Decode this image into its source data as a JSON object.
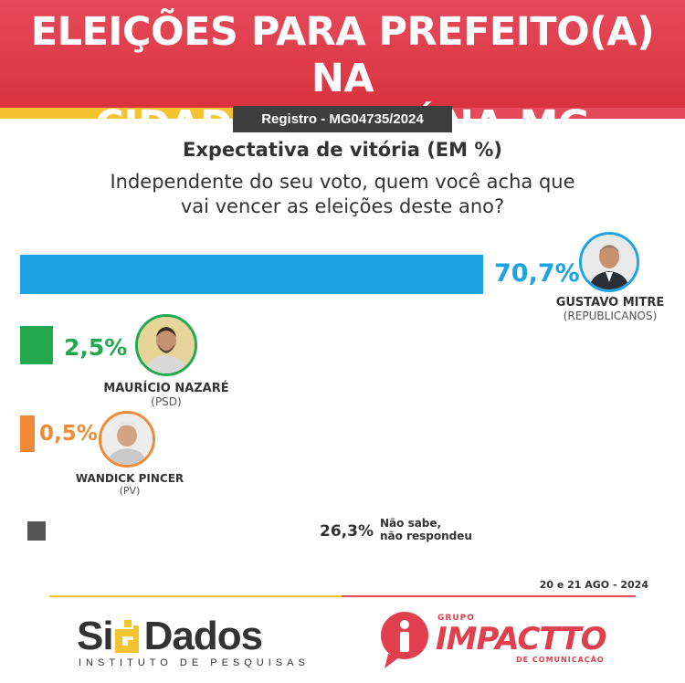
{
  "header": {
    "title_line1": "ELEIÇÕES PARA PREFEITO(A) NA",
    "title_line2": "CIDADE DE ITAÚNA-MG",
    "registro": "Registro - MG04735/2024"
  },
  "subtitle": "Expectativa de vitória (EM %)",
  "question_line1": "Independente do seu voto, quem você acha que",
  "question_line2": "vai vencer as eleições deste ano?",
  "colors": {
    "header": "#e0404e",
    "gustavo": "#1ea3e6",
    "mauricio": "#22a94f",
    "wandick": "#f08a36",
    "nao_sabe": "#555555"
  },
  "chart_data": {
    "type": "bar",
    "orientation": "horizontal",
    "title": "Expectativa de vitória (EM %)",
    "categories": [
      "GUSTAVO MITRE",
      "MAURÍCIO NAZARÉ",
      "WANDICK PINCER",
      "Não sabe, não respondeu"
    ],
    "values": [
      70.7,
      2.5,
      0.5,
      26.3
    ],
    "labels": [
      "70,7%",
      "2,5%",
      "0,5%",
      "26,3%"
    ],
    "parties": [
      "(REPUBLICANOS)",
      "(PSD)",
      "(PV)",
      ""
    ],
    "xlim": [
      0,
      100
    ]
  },
  "nao_sabe_line1": "Não sabe,",
  "nao_sabe_line2": "não respondeu",
  "date": "20 e 21 AGO - 2024",
  "logos": {
    "sig_name_a": "Si",
    "sig_name_b": "Dados",
    "sig_sub": "INSTITUTO DE PESQUISAS",
    "imp_top": "GRUPO",
    "imp_name": "IMPACTTO",
    "imp_sub": "DE COMUNICAÇÃO"
  }
}
